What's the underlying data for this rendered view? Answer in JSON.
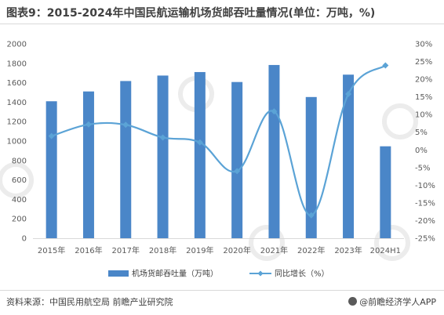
{
  "title": "图表9：2015-2024年中国民航运输机场货邮吞吐量情况(单位：万吨，%)",
  "source": "资料来源：中国民用航空局 前瞻产业研究院",
  "brand": "@前瞻经济学人APP",
  "chart_data": {
    "type": "bar+line",
    "categories": [
      "2015年",
      "2016年",
      "2017年",
      "2018年",
      "2019年",
      "2020年",
      "2021年",
      "2022年",
      "2023年",
      "2024H1"
    ],
    "series": [
      {
        "name": "机场货邮吞吐量（万吨）",
        "type": "bar",
        "axis": "left",
        "color": "#4a86c8",
        "values": [
          1409.4,
          1510.4,
          1617.7,
          1674.0,
          1710.0,
          1607.5,
          1782.8,
          1453.1,
          1683.3,
          946.0
        ]
      },
      {
        "name": "同比增长（%）",
        "type": "line",
        "axis": "right",
        "color": "#5ba3d6",
        "values": [
          3.9,
          7.2,
          7.1,
          3.5,
          2.1,
          -6.0,
          10.9,
          -18.5,
          15.8,
          23.9
        ]
      }
    ],
    "y_left": {
      "min": 0,
      "max": 2000,
      "step": 200,
      "tick_labels": [
        "0",
        "200",
        "400",
        "600",
        "800",
        "1000",
        "1200",
        "1400",
        "1600",
        "1800",
        "2000"
      ]
    },
    "y_right": {
      "min": -25,
      "max": 30,
      "step": 5,
      "tick_labels": [
        "-25%",
        "-20%",
        "-15%",
        "-10%",
        "-5%",
        "0%",
        "5%",
        "10%",
        "15%",
        "20%",
        "25%",
        "30%"
      ]
    },
    "legend_position": "bottom",
    "grid": false
  }
}
